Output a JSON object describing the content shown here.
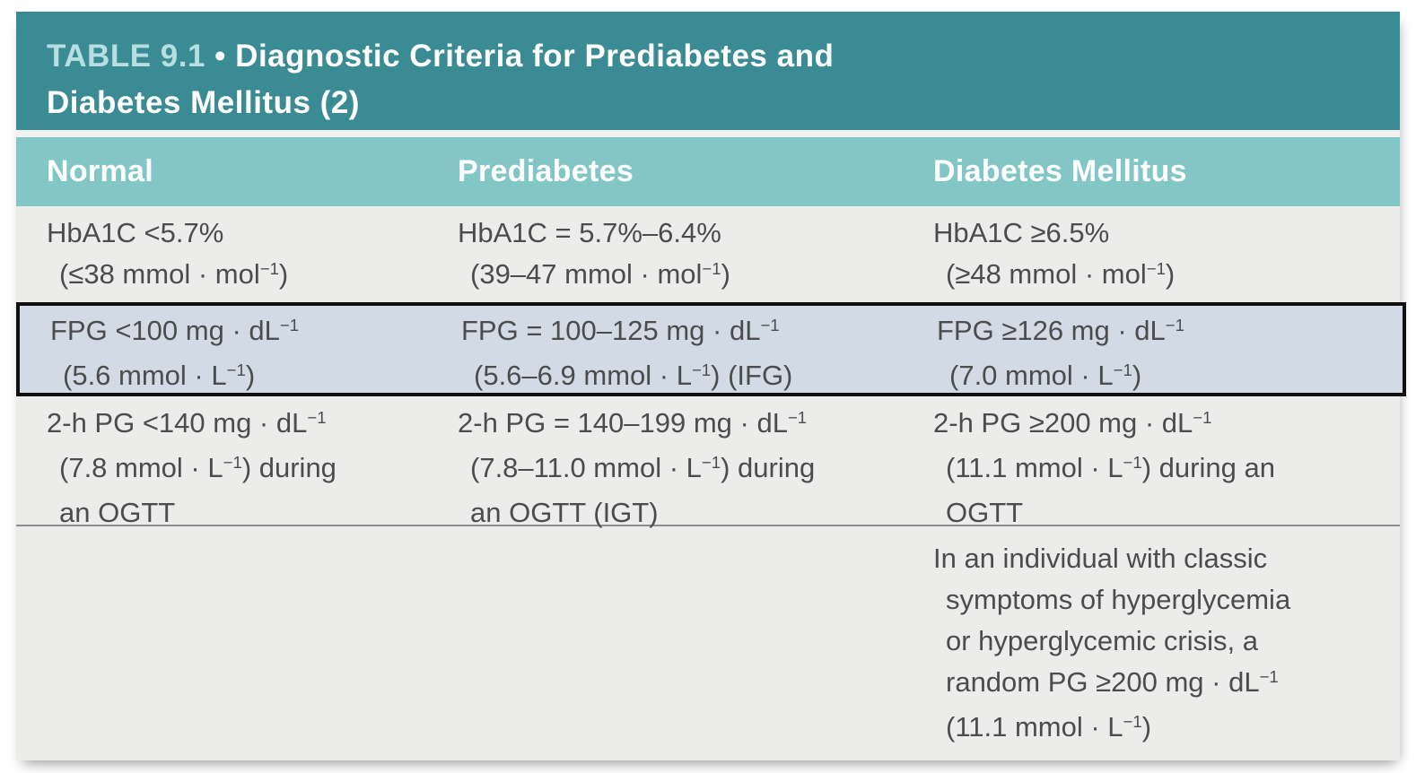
{
  "colors": {
    "header_teal": "#3a8b94",
    "subheader_teal": "#82c6c6",
    "title_accent": "#b7dee0",
    "body_bg": "#ececeb",
    "gap_bg": "#f1f1f1",
    "highlight_bg": "#d2dbe5",
    "highlight_border": "#101010",
    "text_color": "#4a4c4e",
    "separator": "#8d8d8d",
    "page_bg": "#ffffff"
  },
  "table": {
    "title": {
      "label": "TABLE 9.1",
      "bullet": "•",
      "line1_rest": "Diagnostic Criteria for Prediabetes and",
      "line2": "Diabetes Mellitus (2)"
    },
    "columns": [
      "Normal",
      "Prediabetes",
      "Diabetes Mellitus"
    ],
    "rows": [
      {
        "highlighted": false,
        "cells": [
          [
            "HbA1C <5.7%",
            "(≤38 mmol · mol⁻¹)"
          ],
          [
            "HbA1C = 5.7%–6.4%",
            "(39–47 mmol · mol⁻¹)"
          ],
          [
            "HbA1C ≥6.5%",
            "(≥48 mmol · mol⁻¹)"
          ]
        ]
      },
      {
        "highlighted": true,
        "cells": [
          [
            "FPG <100 mg · dL⁻¹",
            "(5.6 mmol · L⁻¹)"
          ],
          [
            "FPG = 100–125 mg · dL⁻¹",
            "(5.6–6.9 mmol · L⁻¹) (IFG)"
          ],
          [
            "FPG ≥126 mg · dL⁻¹",
            "(7.0 mmol · L⁻¹)"
          ]
        ]
      },
      {
        "highlighted": false,
        "cells": [
          [
            "2-h PG <140 mg · dL⁻¹",
            "(7.8 mmol · L⁻¹) during",
            "an OGTT"
          ],
          [
            "2-h PG = 140–199 mg · dL⁻¹",
            "(7.8–11.0 mmol · L⁻¹) during",
            "an OGTT (IGT)"
          ],
          [
            "2-h PG ≥200 mg · dL⁻¹",
            "(11.1 mmol · L⁻¹) during an",
            "OGTT"
          ]
        ]
      },
      {
        "highlighted": false,
        "cells": [
          [],
          [],
          [
            "In an individual with classic",
            "symptoms of hyperglycemia",
            "or hyperglycemic crisis, a",
            "random PG ≥200 mg · dL⁻¹",
            "(11.1 mmol · L⁻¹)"
          ]
        ]
      }
    ]
  }
}
